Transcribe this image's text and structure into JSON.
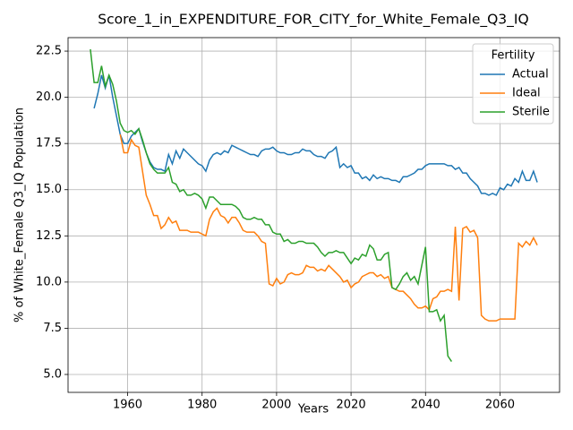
{
  "chart_data": {
    "type": "line",
    "title": "Score_1_in_EXPENDITURE_FOR_CITY_for_White_Female_Q3_IQ",
    "xlabel": "Years",
    "ylabel": "% of White_Female Q3_IQ Population",
    "legend_title": "Fertility",
    "legend_loc": "upper right",
    "grid": true,
    "xlim": [
      1944,
      2076
    ],
    "ylim": [
      4.03,
      23.23
    ],
    "xticks": [
      1960,
      1980,
      2000,
      2020,
      2040,
      2060
    ],
    "yticks": [
      {
        "value": 5,
        "label": "5.0"
      },
      7.5,
      {
        "value": 10,
        "label": "10.0"
      },
      12.5,
      {
        "value": 15,
        "label": "15.0"
      },
      17.5,
      {
        "value": 20,
        "label": "20.0"
      },
      22.5
    ],
    "x": [
      1950,
      1951,
      1952,
      1953,
      1954,
      1955,
      1956,
      1957,
      1958,
      1959,
      1960,
      1961,
      1962,
      1963,
      1964,
      1965,
      1966,
      1967,
      1968,
      1969,
      1970,
      1971,
      1972,
      1973,
      1974,
      1975,
      1976,
      1977,
      1978,
      1979,
      1980,
      1981,
      1982,
      1983,
      1984,
      1985,
      1986,
      1987,
      1988,
      1989,
      1990,
      1991,
      1992,
      1993,
      1994,
      1995,
      1996,
      1997,
      1998,
      1999,
      2000,
      2001,
      2002,
      2003,
      2004,
      2005,
      2006,
      2007,
      2008,
      2009,
      2010,
      2011,
      2012,
      2013,
      2014,
      2015,
      2016,
      2017,
      2018,
      2019,
      2020,
      2021,
      2022,
      2023,
      2024,
      2025,
      2026,
      2027,
      2028,
      2029,
      2030,
      2031,
      2032,
      2033,
      2034,
      2035,
      2036,
      2037,
      2038,
      2039,
      2040,
      2041,
      2042,
      2043,
      2044,
      2045,
      2046,
      2047,
      2048,
      2049,
      2050,
      2051,
      2052,
      2053,
      2054,
      2055,
      2056,
      2057,
      2058,
      2059,
      2060,
      2061,
      2062,
      2063,
      2064,
      2065,
      2066,
      2067,
      2068,
      2069,
      2070
    ],
    "series": [
      {
        "name": "Actual",
        "color": "#1f77b4",
        "values": [
          null,
          19.4,
          20.2,
          21.2,
          20.5,
          21.2,
          20.0,
          19.0,
          18.0,
          17.5,
          17.5,
          17.9,
          18.1,
          18.3,
          17.6,
          17.0,
          16.5,
          16.2,
          16.1,
          16.1,
          16.0,
          16.9,
          16.4,
          17.1,
          16.7,
          17.2,
          17.0,
          16.8,
          16.6,
          16.4,
          16.3,
          16.0,
          16.6,
          16.9,
          17.0,
          16.9,
          17.1,
          17.0,
          17.4,
          17.3,
          17.2,
          17.1,
          17.0,
          16.9,
          16.9,
          16.8,
          17.1,
          17.2,
          17.2,
          17.3,
          17.1,
          17.0,
          17.0,
          16.9,
          16.9,
          17.0,
          17.0,
          17.2,
          17.1,
          17.1,
          16.9,
          16.8,
          16.8,
          16.7,
          17.0,
          17.1,
          17.3,
          16.2,
          16.4,
          16.2,
          16.3,
          15.9,
          15.9,
          15.6,
          15.7,
          15.5,
          15.8,
          15.6,
          15.7,
          15.6,
          15.6,
          15.5,
          15.5,
          15.4,
          15.7,
          15.7,
          15.8,
          15.9,
          16.1,
          16.1,
          16.3,
          16.4,
          16.4,
          16.4,
          16.4,
          16.4,
          16.3,
          16.3,
          16.1,
          16.2,
          15.9,
          15.9,
          15.6,
          15.4,
          15.2,
          14.8,
          14.8,
          14.7,
          14.8,
          14.7,
          15.1,
          15.0,
          15.3,
          15.2,
          15.6,
          15.4,
          16.0,
          15.5,
          15.5,
          16.0,
          15.4
        ]
      },
      {
        "name": "Ideal",
        "color": "#ff7f0e",
        "values": [
          null,
          null,
          null,
          null,
          null,
          null,
          null,
          null,
          18.0,
          17.0,
          17.0,
          17.7,
          17.4,
          17.3,
          16.0,
          14.7,
          14.2,
          13.6,
          13.6,
          12.9,
          13.1,
          13.5,
          13.2,
          13.3,
          12.8,
          12.8,
          12.8,
          12.7,
          12.7,
          12.7,
          12.6,
          12.5,
          13.4,
          13.8,
          14.0,
          13.6,
          13.5,
          13.2,
          13.5,
          13.5,
          13.2,
          12.8,
          12.7,
          12.7,
          12.7,
          12.5,
          12.2,
          12.1,
          9.9,
          9.8,
          10.2,
          9.9,
          10.0,
          10.4,
          10.5,
          10.4,
          10.4,
          10.5,
          10.9,
          10.8,
          10.8,
          10.6,
          10.7,
          10.6,
          10.9,
          10.7,
          10.5,
          10.3,
          10.0,
          10.1,
          9.7,
          9.9,
          10.0,
          10.3,
          10.4,
          10.5,
          10.5,
          10.3,
          10.4,
          10.2,
          10.3,
          9.7,
          9.6,
          9.5,
          9.5,
          9.3,
          9.1,
          8.8,
          8.6,
          8.6,
          8.7,
          8.5,
          9.1,
          9.2,
          9.5,
          9.5,
          9.6,
          9.5,
          13.0,
          9.0,
          12.9,
          13.0,
          12.7,
          12.8,
          12.4,
          8.2,
          8.0,
          7.9,
          7.9,
          7.9,
          8.0,
          8.0,
          8.0,
          8.0,
          8.0,
          12.1,
          11.9,
          12.2,
          12.0,
          12.4,
          12.0
        ]
      },
      {
        "name": "Sterile",
        "color": "#2ca02c",
        "values": [
          22.6,
          20.8,
          20.8,
          21.7,
          20.6,
          21.2,
          20.7,
          19.8,
          18.6,
          18.2,
          18.1,
          18.2,
          18.0,
          18.3,
          17.7,
          17.0,
          16.4,
          16.1,
          15.9,
          15.9,
          15.9,
          16.2,
          15.4,
          15.3,
          14.9,
          15.0,
          14.7,
          14.7,
          14.8,
          14.7,
          14.5,
          14.0,
          14.6,
          14.6,
          14.4,
          14.2,
          14.2,
          14.2,
          14.2,
          14.1,
          13.9,
          13.5,
          13.4,
          13.4,
          13.5,
          13.4,
          13.4,
          13.1,
          13.1,
          12.7,
          12.6,
          12.6,
          12.2,
          12.3,
          12.1,
          12.1,
          12.2,
          12.2,
          12.1,
          12.1,
          12.1,
          11.9,
          11.6,
          11.4,
          11.6,
          11.6,
          11.7,
          11.6,
          11.6,
          11.3,
          11.0,
          11.3,
          11.2,
          11.5,
          11.4,
          12.0,
          11.8,
          11.2,
          11.2,
          11.5,
          11.6,
          9.7,
          9.6,
          9.9,
          10.3,
          10.5,
          10.1,
          10.3,
          9.9,
          10.9,
          11.9,
          8.4,
          8.4,
          8.5,
          7.9,
          8.2,
          6.0,
          5.7,
          null,
          null,
          null,
          null,
          null,
          null,
          null,
          null,
          null,
          null,
          null,
          null,
          null,
          null,
          null,
          null,
          null,
          null,
          null,
          null,
          null,
          null,
          null
        ]
      }
    ]
  }
}
